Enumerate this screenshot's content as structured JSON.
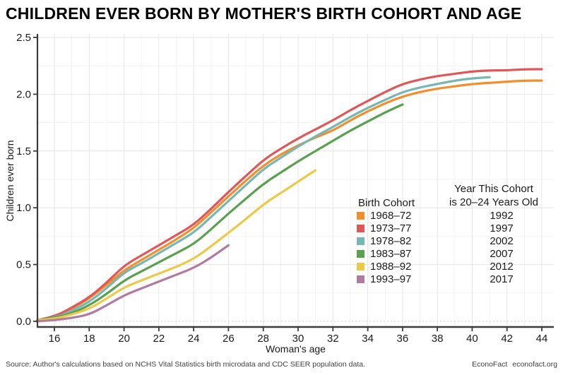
{
  "title": "CHILDREN EVER BORN BY MOTHER'S BIRTH COHORT AND AGE",
  "footer": {
    "source": "Source: Author's calculations based on NCHS Vital Statistics birth microdata and CDC SEER population data.",
    "brand": "EconoFact",
    "site": "econofact.org"
  },
  "chart_data": {
    "type": "line",
    "title": "CHILDREN EVER BORN BY MOTHER'S BIRTH COHORT AND AGE",
    "xlabel": "Woman's age",
    "ylabel": "Children ever born",
    "xlim": [
      15,
      44.6
    ],
    "ylim": [
      -0.05,
      2.55
    ],
    "x_ticks": [
      16,
      18,
      20,
      22,
      24,
      26,
      28,
      30,
      32,
      34,
      36,
      38,
      40,
      42,
      44
    ],
    "y_ticks": [
      "0.0",
      "0.5",
      "1.0",
      "1.5",
      "2.0",
      "2.5"
    ],
    "grid": "major+minor",
    "legend": {
      "cohort_header": "Birth Cohort",
      "year_header_line1": "Year This Cohort",
      "year_header_line2": "is 20–24 Years Old",
      "position": "inside-right"
    },
    "series": [
      {
        "label": "1968–72",
        "year": "1992",
        "color": "#F28E2B",
        "age_start": 15,
        "values": [
          0.01,
          0.04,
          0.11,
          0.2,
          0.32,
          0.45,
          0.54,
          0.63,
          0.72,
          0.82,
          0.96,
          1.1,
          1.24,
          1.37,
          1.47,
          1.55,
          1.62,
          1.68,
          1.77,
          1.85,
          1.92,
          1.98,
          2.02,
          2.05,
          2.07,
          2.09,
          2.1,
          2.11,
          2.12,
          2.12
        ]
      },
      {
        "label": "1973–77",
        "year": "1997",
        "color": "#E15759",
        "age_start": 15,
        "values": [
          0.01,
          0.04,
          0.12,
          0.21,
          0.34,
          0.49,
          0.58,
          0.67,
          0.76,
          0.85,
          0.99,
          1.14,
          1.28,
          1.42,
          1.52,
          1.61,
          1.69,
          1.77,
          1.86,
          1.94,
          2.02,
          2.09,
          2.13,
          2.16,
          2.18,
          2.2,
          2.21,
          2.21,
          2.22,
          2.22
        ]
      },
      {
        "label": "1978–82",
        "year": "2002",
        "color": "#76B7B2",
        "age_start": 15,
        "values": [
          0.01,
          0.03,
          0.09,
          0.17,
          0.29,
          0.43,
          0.51,
          0.6,
          0.69,
          0.78,
          0.92,
          1.06,
          1.2,
          1.34,
          1.44,
          1.54,
          1.63,
          1.71,
          1.8,
          1.88,
          1.95,
          2.02,
          2.06,
          2.09,
          2.12,
          2.14,
          2.15
        ]
      },
      {
        "label": "1983–87",
        "year": "2007",
        "color": "#59A14F",
        "age_start": 15,
        "values": [
          0.01,
          0.03,
          0.07,
          0.14,
          0.24,
          0.36,
          0.44,
          0.52,
          0.6,
          0.68,
          0.81,
          0.95,
          1.08,
          1.21,
          1.31,
          1.41,
          1.5,
          1.59,
          1.68,
          1.76,
          1.84,
          1.91
        ]
      },
      {
        "label": "1988–92",
        "year": "2012",
        "color": "#EDC949",
        "age_start": 15,
        "values": [
          0.01,
          0.02,
          0.06,
          0.11,
          0.2,
          0.3,
          0.36,
          0.42,
          0.48,
          0.55,
          0.66,
          0.78,
          0.9,
          1.03,
          1.13,
          1.23,
          1.33
        ]
      },
      {
        "label": "1993–97",
        "year": "2017",
        "color": "#B07AA1",
        "age_start": 15,
        "values": [
          0.0,
          0.01,
          0.03,
          0.06,
          0.14,
          0.23,
          0.29,
          0.35,
          0.41,
          0.47,
          0.56,
          0.67
        ]
      }
    ]
  }
}
